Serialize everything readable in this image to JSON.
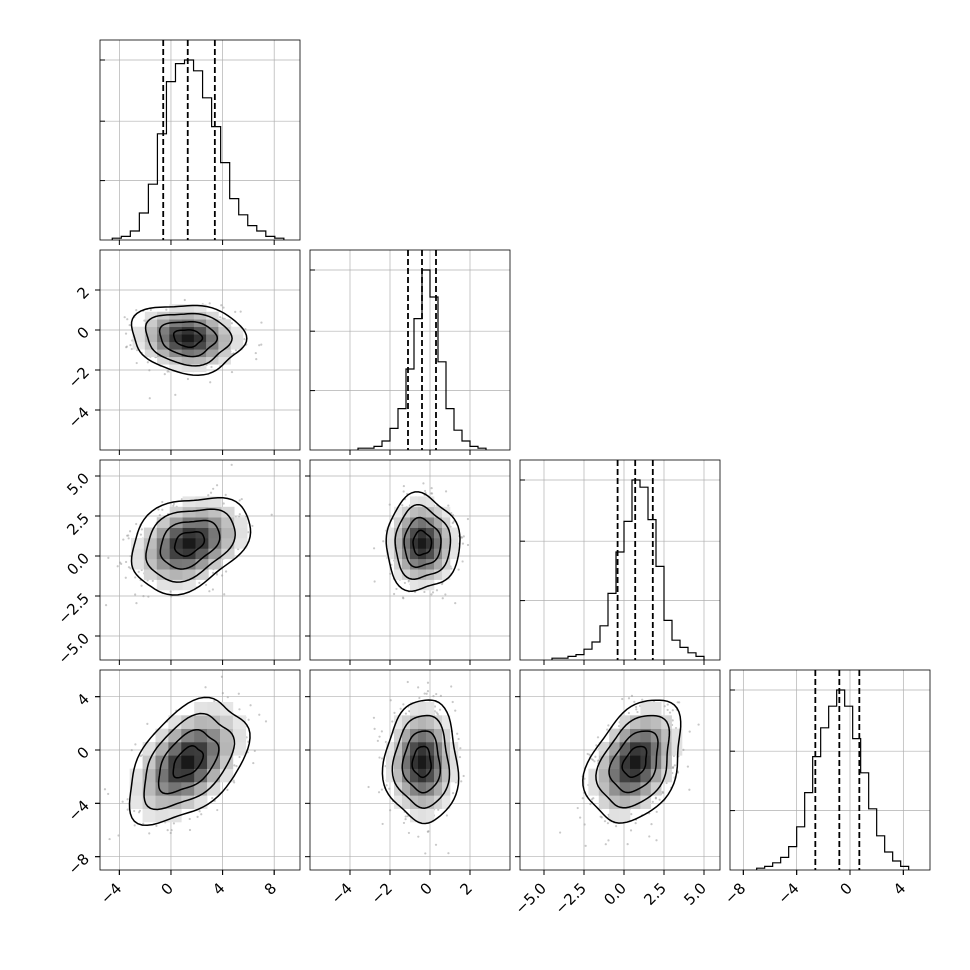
{
  "chart_data": {
    "type": "corner",
    "variables": [
      {
        "range": [
          -5.5,
          10
        ],
        "ticks": [
          -4,
          0,
          4,
          8
        ],
        "tick_labels": [
          "−4",
          "0",
          "4",
          "8"
        ],
        "histogram": {
          "bin_width": 0.7,
          "bin_centers": [
            -4.2,
            -3.5,
            -2.8,
            -2.1,
            -1.4,
            -0.7,
            0.0,
            0.7,
            1.4,
            2.1,
            2.8,
            3.5,
            4.2,
            4.9,
            5.6,
            6.3,
            7.0,
            7.7,
            8.4
          ],
          "heights": [
            0.01,
            0.02,
            0.05,
            0.15,
            0.31,
            0.59,
            0.88,
            0.98,
            1.0,
            0.94,
            0.79,
            0.63,
            0.43,
            0.23,
            0.14,
            0.08,
            0.05,
            0.02,
            0.01
          ]
        },
        "quantiles": [
          -0.6,
          1.3,
          3.4
        ]
      },
      {
        "range": [
          -6.0,
          4.0
        ],
        "ticks": [
          -4,
          -2,
          0,
          2
        ],
        "tick_labels": [
          "−4",
          "−2",
          "0",
          "2"
        ],
        "histogram": {
          "bin_width": 0.4,
          "bin_centers": [
            -3.4,
            -3.0,
            -2.6,
            -2.2,
            -1.8,
            -1.4,
            -1.0,
            -0.6,
            -0.2,
            0.2,
            0.6,
            1.0,
            1.4,
            1.8,
            2.2,
            2.6
          ],
          "heights": [
            0.01,
            0.01,
            0.02,
            0.05,
            0.12,
            0.23,
            0.45,
            0.73,
            1.0,
            0.85,
            0.49,
            0.23,
            0.11,
            0.05,
            0.02,
            0.01
          ]
        },
        "quantiles": [
          -1.1,
          -0.4,
          0.3
        ]
      },
      {
        "range": [
          -6.5,
          6.0
        ],
        "ticks": [
          -5.0,
          -2.5,
          0.0,
          2.5,
          5.0
        ],
        "tick_labels": [
          "−5.0",
          "−2.5",
          "0.0",
          "2.5",
          "5.0"
        ],
        "histogram": {
          "bin_width": 0.5,
          "bin_centers": [
            -4.25,
            -3.75,
            -3.25,
            -2.75,
            -2.25,
            -1.75,
            -1.25,
            -0.75,
            -0.25,
            0.25,
            0.75,
            1.25,
            1.75,
            2.25,
            2.75,
            3.25,
            3.75,
            4.25,
            4.75
          ],
          "heights": [
            0.01,
            0.01,
            0.02,
            0.03,
            0.06,
            0.1,
            0.19,
            0.37,
            0.6,
            0.77,
            1.0,
            0.96,
            0.78,
            0.52,
            0.22,
            0.11,
            0.07,
            0.04,
            0.02
          ]
        },
        "quantiles": [
          -0.4,
          0.7,
          1.8
        ]
      },
      {
        "range": [
          -9.0,
          6.0
        ],
        "ticks": [
          -8,
          -4,
          0,
          4
        ],
        "tick_labels": [
          "−8",
          "−4",
          "0",
          "4"
        ],
        "histogram": {
          "bin_width": 0.6,
          "bin_centers": [
            -6.7,
            -6.1,
            -5.5,
            -4.9,
            -4.3,
            -3.7,
            -3.1,
            -2.5,
            -1.9,
            -1.3,
            -0.7,
            -0.1,
            0.5,
            1.1,
            1.7,
            2.3,
            2.9,
            3.5,
            4.1
          ],
          "heights": [
            0.01,
            0.02,
            0.04,
            0.07,
            0.13,
            0.24,
            0.43,
            0.63,
            0.79,
            0.91,
            1.0,
            0.91,
            0.73,
            0.54,
            0.34,
            0.19,
            0.1,
            0.05,
            0.02
          ]
        },
        "quantiles": [
          -2.6,
          -0.8,
          0.7
        ]
      }
    ],
    "joint": [
      {
        "row": 1,
        "col": 0,
        "mean": [
          1.3,
          -0.4
        ],
        "sd": [
          1.9,
          0.75
        ],
        "rho": -0.1
      },
      {
        "row": 2,
        "col": 0,
        "mean": [
          1.4,
          0.8
        ],
        "sd": [
          2.0,
          1.3
        ],
        "rho": 0.3
      },
      {
        "row": 2,
        "col": 1,
        "mean": [
          -0.4,
          0.8
        ],
        "sd": [
          0.8,
          1.3
        ],
        "rho": 0.0
      },
      {
        "row": 3,
        "col": 0,
        "mean": [
          1.3,
          -0.9
        ],
        "sd": [
          2.0,
          2.0
        ],
        "rho": 0.45
      },
      {
        "row": 3,
        "col": 1,
        "mean": [
          -0.4,
          -0.9
        ],
        "sd": [
          0.8,
          2.0
        ],
        "rho": 0.0
      },
      {
        "row": 3,
        "col": 2,
        "mean": [
          0.7,
          -0.9
        ],
        "sd": [
          1.3,
          2.0
        ],
        "rho": 0.35
      }
    ],
    "quantile_levels": [
      0.16,
      0.5,
      0.84
    ],
    "contour_levels_sigma": [
      0.5,
      1.0,
      1.5,
      2.0
    ],
    "grid": true,
    "colors": {
      "points": "#9a9a9a",
      "ink": "#000000",
      "grid": "#b0b0b0"
    }
  }
}
